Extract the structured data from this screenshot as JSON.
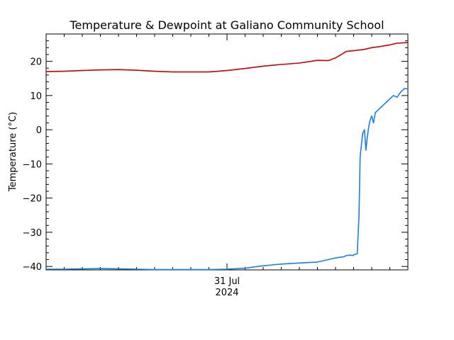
{
  "chart_data": {
    "type": "line",
    "title": "Temperature & Dewpoint at Galiano Community School",
    "xlabel": "31 Jul",
    "xlabel2": "2024",
    "ylabel": "Temperature (°C)",
    "xlim": [
      0,
      100
    ],
    "ylim": [
      -41,
      28
    ],
    "yticks": [
      -40,
      -30,
      -20,
      -10,
      0,
      10,
      20
    ],
    "yticks_minor_step": 2,
    "xticks_minor_step": 5,
    "x_date_tick": 50,
    "grid": false,
    "series": [
      {
        "name": "Temperature",
        "color": "#cc0000",
        "x": [
          0,
          5,
          10,
          15,
          20,
          25,
          30,
          35,
          40,
          45,
          50,
          55,
          60,
          65,
          70,
          72,
          75,
          78,
          80,
          83,
          85,
          88,
          90,
          92,
          95,
          97,
          100
        ],
        "y": [
          17.0,
          17.1,
          17.3,
          17.5,
          17.6,
          17.4,
          17.1,
          16.9,
          16.9,
          16.9,
          17.3,
          17.9,
          18.6,
          19.1,
          19.5,
          19.8,
          20.3,
          20.2,
          21.0,
          22.9,
          23.1,
          23.5,
          24.0,
          24.3,
          24.8,
          25.3,
          25.5
        ]
      },
      {
        "name": "Dewpoint",
        "color": "#1a7fe0",
        "x": [
          0,
          5,
          10,
          15,
          20,
          25,
          30,
          35,
          40,
          45,
          50,
          55,
          60,
          65,
          70,
          75,
          78,
          80,
          82,
          82.6,
          83,
          84,
          84.8,
          85.2,
          86,
          86.5,
          86.8,
          87.2,
          87.5,
          88,
          88.4,
          88.8,
          89.2,
          89.6,
          90,
          90.5,
          91,
          92,
          93,
          94,
          95,
          96,
          97,
          98,
          99,
          100
        ],
        "y": [
          -40.8,
          -40.8,
          -40.7,
          -40.6,
          -40.7,
          -40.8,
          -40.9,
          -40.9,
          -40.9,
          -40.9,
          -40.8,
          -40.5,
          -39.8,
          -39.3,
          -39.0,
          -38.7,
          -38.0,
          -37.5,
          -37.2,
          -37.0,
          -36.8,
          -36.7,
          -36.8,
          -36.5,
          -36.3,
          -25,
          -8,
          -4,
          -1,
          0,
          -6,
          -2,
          1,
          3,
          4,
          2,
          5,
          6,
          7,
          8,
          9,
          10,
          9.5,
          11,
          12,
          12
        ]
      }
    ]
  }
}
